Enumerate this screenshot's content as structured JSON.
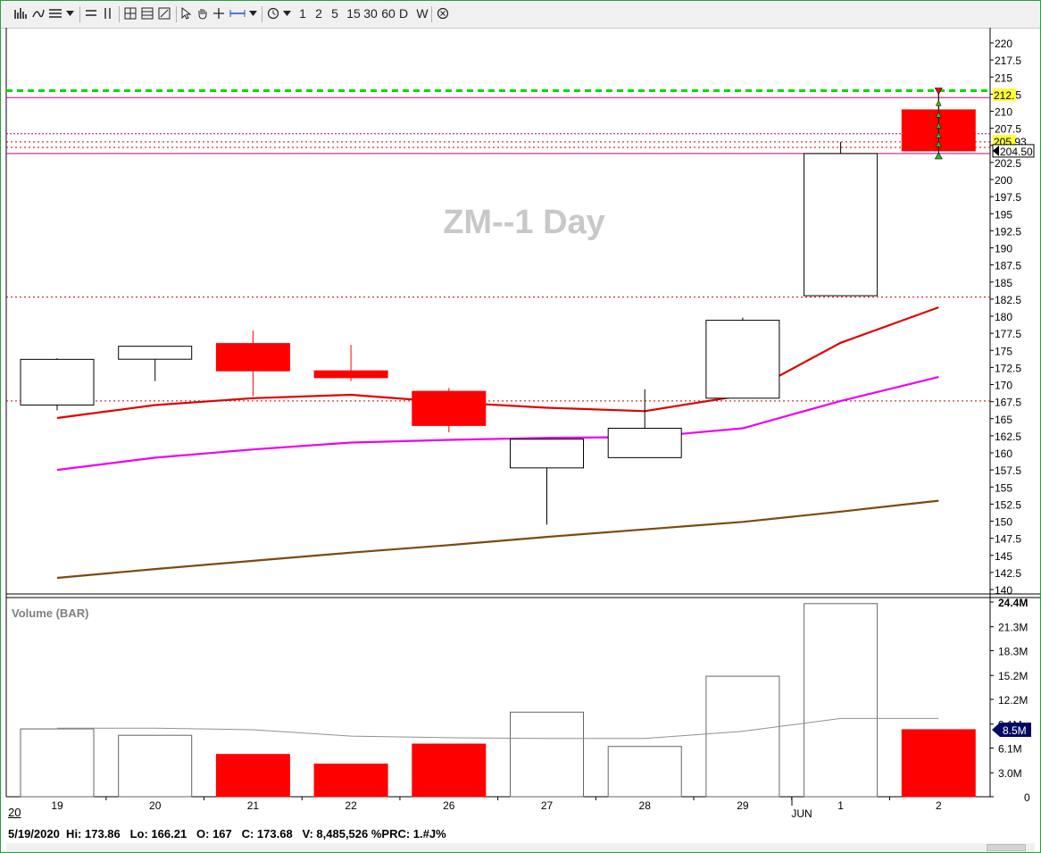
{
  "toolbar": {
    "interval_buttons": [
      "1",
      "2",
      "5",
      "15",
      "30",
      "60",
      "D",
      "W"
    ]
  },
  "title_text": "ZM--1 Day",
  "price_axis_ticks": [
    "220",
    "217.5",
    "215",
    "212.5",
    "210",
    "207.5",
    "205",
    "202.5",
    "200",
    "197.5",
    "195",
    "192.5",
    "190",
    "187.5",
    "185",
    "182.5",
    "180",
    "177.5",
    "175",
    "172.5",
    "170",
    "167.5",
    "165",
    "162.5",
    "160",
    "157.5",
    "155",
    "152.5",
    "150",
    "147.5",
    "145",
    "142.5",
    "140"
  ],
  "price_markers": {
    "marker_a": "212.",
    "marker_b": "205.93",
    "marker_c": "204.50"
  },
  "volume_panel": {
    "label": "Volume (BAR)",
    "axis_ticks": [
      "24.4M",
      "21.3M",
      "18.3M",
      "15.2M",
      "12.2M",
      "9.1M",
      "6.1M",
      "3.0M",
      "0"
    ],
    "current_marker": "8.5M"
  },
  "date_axis": {
    "day_labels": [
      "19",
      "20",
      "21",
      "22",
      "26",
      "27",
      "28",
      "29",
      "1",
      "2"
    ],
    "month_label": "JUN",
    "year_label": "20"
  },
  "status_bar": {
    "text": "5/19/2020  Hi: 173.86   Lo: 166.21   O: 167   C: 173.68   V: 8,485,526 %PRC: 1.#J%"
  },
  "colors": {
    "up_candle": "#ffffff",
    "down_candle": "#ff0000",
    "ma_fast": "#e00000",
    "ma_mid": "#ee00ee",
    "ma_slow": "#7a4a10",
    "resistance_line": "#00dd00",
    "volume_ma": "#909090",
    "price_marker_bg": "#ffff33"
  },
  "chart_data": [
    {
      "type": "candlestick",
      "title": "ZM--1 Day",
      "categories": [
        "19",
        "20",
        "21",
        "22",
        "26",
        "27",
        "28",
        "29",
        "1",
        "2"
      ],
      "ylim": [
        140,
        222
      ],
      "candles": [
        {
          "date": "19",
          "open": 167,
          "high": 173.86,
          "low": 166.21,
          "close": 173.68,
          "direction": "up"
        },
        {
          "date": "20",
          "open": 173.7,
          "high": 175.6,
          "low": 170.5,
          "close": 175.6,
          "direction": "up"
        },
        {
          "date": "21",
          "open": 176,
          "high": 177.9,
          "low": 168.3,
          "close": 172,
          "direction": "down"
        },
        {
          "date": "22",
          "open": 172,
          "high": 175.8,
          "low": 170.5,
          "close": 171,
          "direction": "down"
        },
        {
          "date": "26",
          "open": 169,
          "high": 169.5,
          "low": 163,
          "close": 164,
          "direction": "down"
        },
        {
          "date": "27",
          "open": 157.8,
          "high": 162,
          "low": 149.5,
          "close": 162,
          "direction": "up"
        },
        {
          "date": "28",
          "open": 159.3,
          "high": 169.3,
          "low": 159.3,
          "close": 163.6,
          "direction": "up"
        },
        {
          "date": "29",
          "open": 168,
          "high": 179.8,
          "low": 168,
          "close": 179.4,
          "direction": "up"
        },
        {
          "date": "1",
          "open": 183,
          "high": 205.5,
          "low": 183,
          "close": 203.8,
          "direction": "up"
        },
        {
          "date": "2",
          "open": 210.2,
          "high": 212.8,
          "low": 203.3,
          "close": 204.2,
          "direction": "down"
        }
      ],
      "moving_averages": [
        {
          "values": [
            165.1,
            167.0,
            168.0,
            168.5,
            167.4,
            166.6,
            166.1,
            168.4,
            176.1,
            181.3
          ]
        },
        {
          "values": [
            157.5,
            159.3,
            160.5,
            161.5,
            161.9,
            162.2,
            162.3,
            163.6,
            167.6,
            171.1
          ]
        },
        {
          "values": [
            141.7,
            143.0,
            144.2,
            145.4,
            146.5,
            147.7,
            148.8,
            149.9,
            151.4,
            153.0
          ]
        }
      ],
      "horizontal_lines": [
        {
          "value": 213.0,
          "style": "green-dashed"
        },
        {
          "value": 212.0,
          "style": "magenta-solid"
        },
        {
          "value": 206.7,
          "style": "magenta-dotted"
        },
        {
          "value": 205.5,
          "style": "red-dotted"
        },
        {
          "value": 204.7,
          "style": "red-dotted"
        },
        {
          "value": 203.8,
          "style": "magenta-solid"
        },
        {
          "value": 182.8,
          "style": "red-dotted"
        },
        {
          "value": 167.6,
          "style": "red-dotted"
        }
      ]
    },
    {
      "type": "bar",
      "title": "Volume (BAR)",
      "categories": [
        "19",
        "20",
        "21",
        "22",
        "26",
        "27",
        "28",
        "29",
        "1",
        "2"
      ],
      "ylim": [
        0,
        24.4
      ],
      "units": "M",
      "series": [
        {
          "values": [
            8.5,
            7.7,
            5.3,
            4.1,
            6.6,
            10.6,
            6.3,
            15.1,
            24.2,
            8.4
          ],
          "directions": [
            "up",
            "up",
            "down",
            "down",
            "down",
            "up",
            "up",
            "up",
            "up",
            "down"
          ]
        },
        {
          "values": [
            8.6,
            8.6,
            8.4,
            7.6,
            7.4,
            7.3,
            7.3,
            8.2,
            9.8,
            9.8
          ]
        }
      ]
    }
  ]
}
